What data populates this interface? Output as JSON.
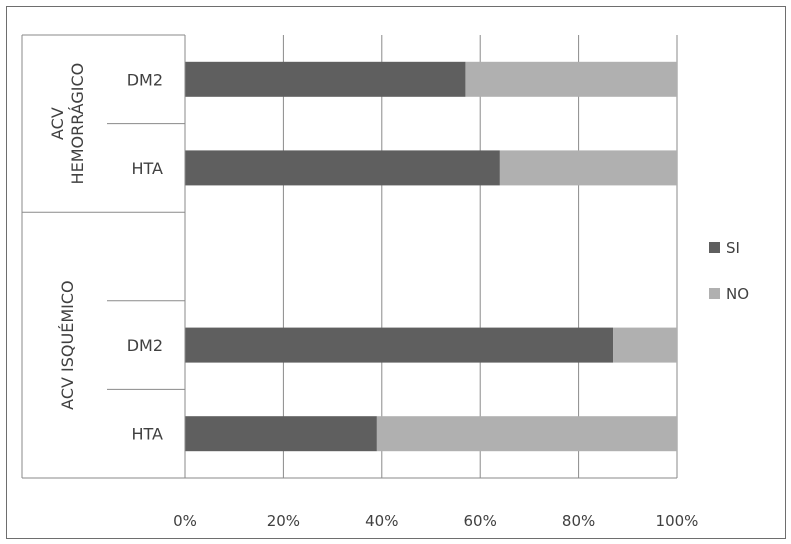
{
  "chart_data": {
    "type": "bar",
    "orientation": "horizontal",
    "stacking": "percent",
    "groups": [
      {
        "name": "ACV HEMORRÁGICO",
        "name_lines": [
          "ACV",
          "HEMORRÁGICO"
        ],
        "categories": [
          "DM2",
          "HTA"
        ],
        "series_values": {
          "SI": [
            57,
            64
          ],
          "NO": [
            43,
            36
          ]
        }
      },
      {
        "name": "ACV ISQUÉMICO",
        "name_lines": [
          "ACV ISQUÉMICO"
        ],
        "categories": [
          "",
          "DM2",
          "HTA"
        ],
        "series_values": {
          "SI": [
            null,
            87,
            39
          ],
          "NO": [
            null,
            13,
            61
          ]
        }
      }
    ],
    "series": [
      {
        "name": "SI",
        "color": "#5f5f5f"
      },
      {
        "name": "NO",
        "color": "#b0b0b0"
      }
    ],
    "x_ticks": [
      "0%",
      "20%",
      "40%",
      "60%",
      "80%",
      "100%"
    ],
    "xlim": [
      0,
      100
    ],
    "grid": true,
    "legend_position": "right"
  }
}
